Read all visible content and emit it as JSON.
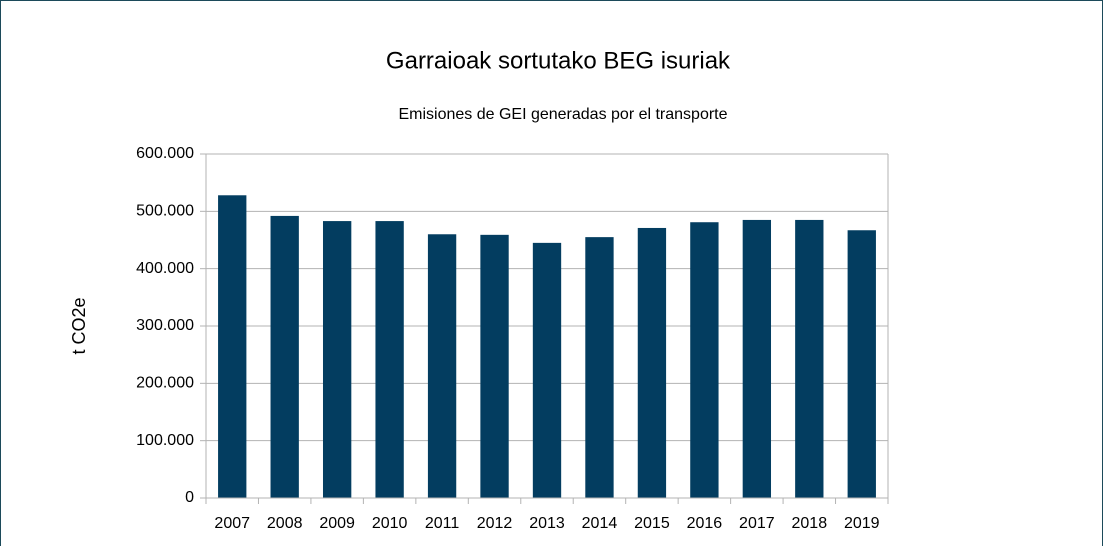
{
  "chart_data": {
    "type": "bar",
    "title": "Garraioak sortutako BEG isuriak",
    "subtitle": "Emisiones de GEI generadas por el transporte",
    "y_label": "t CO2e",
    "categories": [
      "2007",
      "2008",
      "2009",
      "2010",
      "2011",
      "2012",
      "2013",
      "2014",
      "2015",
      "2016",
      "2017",
      "2018",
      "2019"
    ],
    "values": [
      528000,
      492000,
      483000,
      483000,
      460000,
      459000,
      445000,
      455000,
      471000,
      481000,
      485000,
      485000,
      467000
    ],
    "color": "#033d60",
    "ylim": [
      0,
      600000
    ],
    "yticks": [
      0,
      {
        "value": 100000,
        "label": "100.000"
      },
      {
        "value": 200000,
        "label": "200.000"
      },
      {
        "value": 300000,
        "label": "300.000"
      },
      {
        "value": 400000,
        "label": "400.000"
      },
      {
        "value": 500000,
        "label": "500.000"
      },
      {
        "value": 600000,
        "label": "600.000"
      }
    ],
    "grid": true
  }
}
